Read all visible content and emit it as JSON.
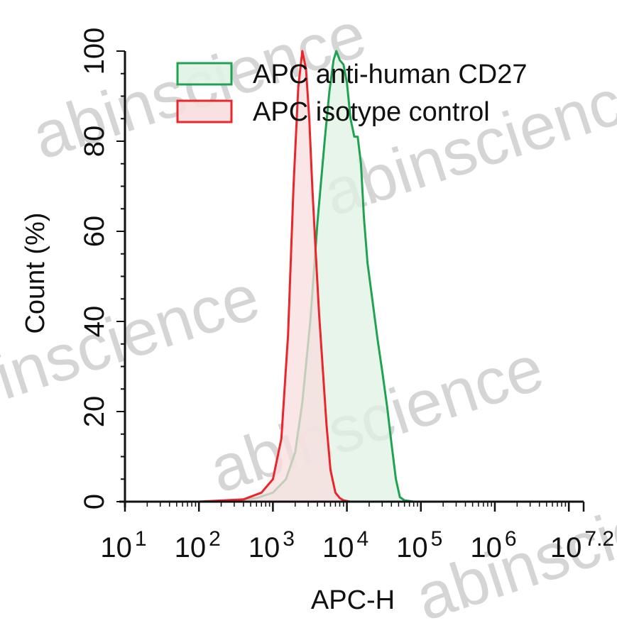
{
  "chart_data": {
    "type": "area",
    "title": "",
    "xlabel": "APC-H",
    "ylabel": "Count (%)",
    "xscale": "log10",
    "xlim": [
      10,
      15848932
    ],
    "ylim": [
      0,
      100
    ],
    "x_tick_labels": [
      {
        "base": "10",
        "exp": "1"
      },
      {
        "base": "10",
        "exp": "2"
      },
      {
        "base": "10",
        "exp": "3"
      },
      {
        "base": "10",
        "exp": "4"
      },
      {
        "base": "10",
        "exp": "5"
      },
      {
        "base": "10",
        "exp": "6"
      },
      {
        "base": "10",
        "exp": "7.2"
      }
    ],
    "y_tick_labels": [
      "0",
      "20",
      "40",
      "60",
      "80",
      "100"
    ],
    "legend_position": "top-right",
    "series": [
      {
        "name": "APC anti-human CD27",
        "color": "#1fa350",
        "fill": "#dff2e4",
        "x": [
          100,
          300,
          600,
          1000,
          1500,
          2000,
          2500,
          3200,
          4000,
          5000,
          5800,
          6600,
          7200,
          8000,
          9000,
          10000,
          11200,
          12600,
          14000,
          15500,
          17000,
          19000,
          22000,
          26000,
          30000,
          35000,
          40000,
          46000,
          52000,
          60000,
          80000,
          200000,
          1000000,
          15848932
        ],
        "y": [
          0,
          0.2,
          0.8,
          2,
          5,
          11,
          22,
          40,
          62,
          80,
          91,
          98,
          100,
          98,
          97,
          93,
          85,
          81,
          81,
          75,
          63,
          53,
          45,
          36,
          29,
          21,
          13,
          5,
          1,
          0.3,
          0,
          0,
          0,
          0
        ]
      },
      {
        "name": "APC isotype control",
        "color": "#e8262b",
        "fill": "#f8dede",
        "x": [
          100,
          400,
          700,
          1000,
          1300,
          1600,
          1900,
          2200,
          2500,
          2800,
          3100,
          3400,
          3800,
          4200,
          4700,
          5300,
          6000,
          7000,
          8000,
          9000,
          11000,
          20000,
          15848932
        ],
        "y": [
          0,
          0.5,
          2,
          5,
          14,
          37,
          70,
          92,
          100,
          96,
          85,
          70,
          55,
          42,
          30,
          17,
          7,
          2,
          0.8,
          0.3,
          0,
          0,
          0
        ]
      }
    ],
    "watermark": "abinscience"
  }
}
